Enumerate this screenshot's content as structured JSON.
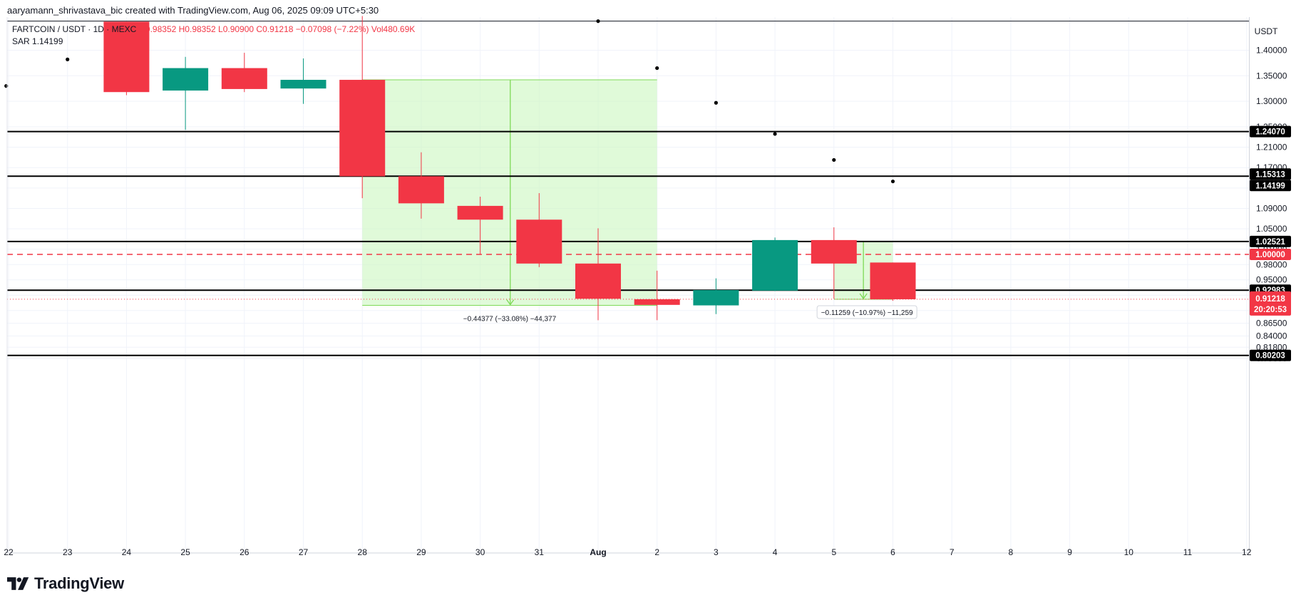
{
  "header": {
    "creator": "aaryamann_shrivastava_bic created with TradingView.com, Aug 06, 2025 09:09 UTC+5:30",
    "symbol": "FARTCOIN / USDT · 1D · MEXC",
    "ohlc": "O0.98352 H0.98352 L0.90900 C0.91218 −0.07098 (−7.22%) Vol480.69K",
    "sar_label": "SAR",
    "sar_value": "1.14199"
  },
  "branding": {
    "logo_text": "TradingView",
    "logo_icon": "tradingview-logo-icon"
  },
  "colors": {
    "up": "#089981",
    "down": "#f23645",
    "zone": "#ccf6c0",
    "zone_edge": "#7ed957",
    "current_price_line": "#f23645"
  },
  "chart_data": {
    "type": "candlestick",
    "currency": "USDT",
    "y_ticks": [
      "1.40000",
      "1.35000",
      "1.30000",
      "1.25000",
      "1.21000",
      "1.17000",
      "1.13000",
      "1.09000",
      "1.05000",
      "1.01000",
      "0.98000",
      "0.95000",
      "0.92000",
      "0.89000",
      "0.86500",
      "0.84000",
      "0.81800",
      "0.79600"
    ],
    "x_ticks": [
      {
        "label": "22",
        "idx": 0
      },
      {
        "label": "23",
        "idx": 1
      },
      {
        "label": "24",
        "idx": 2
      },
      {
        "label": "25",
        "idx": 3
      },
      {
        "label": "26",
        "idx": 4
      },
      {
        "label": "27",
        "idx": 5
      },
      {
        "label": "28",
        "idx": 6
      },
      {
        "label": "29",
        "idx": 7
      },
      {
        "label": "30",
        "idx": 8
      },
      {
        "label": "31",
        "idx": 9
      },
      {
        "label": "Aug",
        "idx": 10
      },
      {
        "label": "2",
        "idx": 11
      },
      {
        "label": "3",
        "idx": 12
      },
      {
        "label": "4",
        "idx": 13
      },
      {
        "label": "5",
        "idx": 14
      },
      {
        "label": "6",
        "idx": 15
      },
      {
        "label": "7",
        "idx": 16
      },
      {
        "label": "8",
        "idx": 17
      },
      {
        "label": "9",
        "idx": 18
      },
      {
        "label": "10",
        "idx": 19
      },
      {
        "label": "11",
        "idx": 20
      },
      {
        "label": "12",
        "idx": 21
      }
    ],
    "candles": [
      {
        "date": "Jul 24",
        "o": 1.456,
        "h": 1.456,
        "l": 1.312,
        "c": 1.318
      },
      {
        "date": "Jul 25",
        "o": 1.321,
        "h": 1.387,
        "l": 1.244,
        "c": 1.365
      },
      {
        "date": "Jul 26",
        "o": 1.365,
        "h": 1.395,
        "l": 1.318,
        "c": 1.324
      },
      {
        "date": "Jul 27",
        "o": 1.325,
        "h": 1.384,
        "l": 1.295,
        "c": 1.342
      },
      {
        "date": "Jul 28",
        "o": 1.342,
        "h": 1.467,
        "l": 1.11,
        "c": 1.153
      },
      {
        "date": "Jul 29",
        "o": 1.153,
        "h": 1.2,
        "l": 1.07,
        "c": 1.1
      },
      {
        "date": "Jul 30",
        "o": 1.095,
        "h": 1.113,
        "l": 1.0,
        "c": 1.068
      },
      {
        "date": "Jul 31",
        "o": 1.068,
        "h": 1.12,
        "l": 0.975,
        "c": 0.982
      },
      {
        "date": "Aug 1",
        "o": 0.982,
        "h": 1.051,
        "l": 0.871,
        "c": 0.913
      },
      {
        "date": "Aug 2",
        "o": 0.912,
        "h": 0.968,
        "l": 0.871,
        "c": 0.901
      },
      {
        "date": "Aug 3",
        "o": 0.9,
        "h": 0.953,
        "l": 0.883,
        "c": 0.93
      },
      {
        "date": "Aug 4",
        "o": 0.929,
        "h": 1.033,
        "l": 0.928,
        "c": 1.028
      },
      {
        "date": "Aug 5",
        "o": 1.028,
        "h": 1.053,
        "l": 0.913,
        "c": 0.982
      },
      {
        "date": "Aug 6",
        "o": 0.984,
        "h": 0.984,
        "l": 0.909,
        "c": 0.912
      }
    ],
    "sar_points": [
      {
        "x": -0.04,
        "y": 1.33
      },
      {
        "x": 1,
        "y": 1.382
      },
      {
        "x": 10,
        "y": 1.457
      },
      {
        "x": 11,
        "y": 1.365
      },
      {
        "x": 12,
        "y": 1.297
      },
      {
        "x": 13,
        "y": 1.236
      },
      {
        "x": 14,
        "y": 1.185
      },
      {
        "x": 15,
        "y": 1.143
      }
    ],
    "levels": [
      {
        "label": "1.24070",
        "y": 1.2407,
        "style": "solid",
        "color": "#000000"
      },
      {
        "label": "1.15313",
        "y": 1.15313,
        "style": "solid",
        "color": "#000000"
      },
      {
        "label": "1.14199",
        "y": 1.14199,
        "style": "tag-only",
        "color": "#000000"
      },
      {
        "label": "1.02521",
        "y": 1.02521,
        "style": "solid",
        "color": "#000000"
      },
      {
        "label": "1.00000",
        "y": 1.0,
        "style": "dashed",
        "color": "#f23645"
      },
      {
        "label": "0.92983",
        "y": 0.92983,
        "style": "solid",
        "color": "#000000"
      },
      {
        "label": "0.80203",
        "y": 0.80203,
        "style": "solid",
        "color": "#000000"
      }
    ],
    "top_line": {
      "y": 1.457
    },
    "current_price": {
      "label": "0.91218",
      "countdown": "20:20:53",
      "y": 0.91218
    },
    "measurements": [
      {
        "x1": 6,
        "x2": 11,
        "y1": 1.342,
        "y2": 0.9,
        "arrow_x": 8.51,
        "label": "−0.44377 (−33.08%) −44,377"
      },
      {
        "x1": 14,
        "x2": 15,
        "y1": 1.025,
        "y2": 0.912,
        "arrow_x": 14.5,
        "label": "−0.11259 (−10.97%) −11,259"
      }
    ]
  }
}
